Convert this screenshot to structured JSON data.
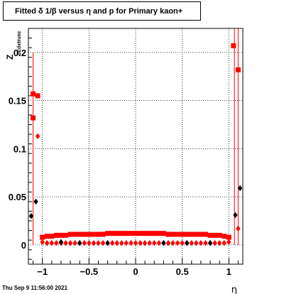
{
  "title": "Fitted δ 1/β versus η and p for Primary kaon+",
  "timestamp": "Thu Sep  9 11:56:00 2021",
  "chart_data": {
    "type": "scatter",
    "title": "Fitted δ 1/β versus η and p for Primary kaon+",
    "xlabel": "η",
    "ylabel_main": "Z",
    "ylabel_sub": "dEdxtrunc",
    "xlim": [
      -1.15,
      1.15
    ],
    "ylim": [
      -0.02,
      0.225
    ],
    "x_ticks": [
      -1,
      -0.5,
      0,
      0.5,
      1
    ],
    "x_tick_labels": [
      "−1",
      "−0.5",
      "0",
      "0.5",
      "1"
    ],
    "y_ticks": [
      0,
      0.05,
      0.1,
      0.15,
      0.2
    ],
    "y_tick_labels": [
      "0",
      "0.05",
      "0.1",
      "0.15",
      "0.2"
    ],
    "grid": true,
    "series": [
      {
        "marker": "square",
        "color": "#ff0000",
        "x": [
          -1.1,
          -1.1,
          -1.05,
          -1.0,
          -0.95,
          -0.9,
          -0.85,
          -0.8,
          -0.75,
          -0.7,
          -0.65,
          -0.6,
          -0.55,
          -0.5,
          -0.45,
          -0.4,
          -0.35,
          -0.3,
          -0.25,
          -0.2,
          -0.15,
          -0.1,
          -0.05,
          0.0,
          0.05,
          0.1,
          0.15,
          0.2,
          0.25,
          0.3,
          0.35,
          0.4,
          0.45,
          0.5,
          0.55,
          0.6,
          0.65,
          0.7,
          0.75,
          0.8,
          0.85,
          0.9,
          0.95,
          1.0,
          1.05,
          1.1
        ],
        "y": [
          0.157,
          0.132,
          0.155,
          0.008,
          0.009,
          0.009,
          0.01,
          0.01,
          0.01,
          0.011,
          0.011,
          0.011,
          0.011,
          0.011,
          0.011,
          0.011,
          0.011,
          0.012,
          0.012,
          0.012,
          0.012,
          0.012,
          0.012,
          0.012,
          0.012,
          0.012,
          0.012,
          0.012,
          0.012,
          0.012,
          0.011,
          0.011,
          0.011,
          0.011,
          0.011,
          0.011,
          0.011,
          0.011,
          0.011,
          0.01,
          0.01,
          0.01,
          0.009,
          0.008,
          0.207,
          0.182
        ]
      },
      {
        "marker": "diamond",
        "color": "#ff0000",
        "x": [
          -1.05,
          -1.0,
          -0.95,
          -0.9,
          -0.85,
          -0.8,
          -0.75,
          -0.7,
          -0.65,
          -0.6,
          -0.55,
          -0.5,
          -0.45,
          -0.4,
          -0.35,
          -0.3,
          -0.25,
          -0.2,
          -0.15,
          -0.1,
          -0.05,
          0.0,
          0.05,
          0.1,
          0.15,
          0.2,
          0.25,
          0.3,
          0.35,
          0.4,
          0.45,
          0.5,
          0.55,
          0.6,
          0.65,
          0.7,
          0.75,
          0.8,
          0.85,
          0.9,
          0.95,
          1.0,
          1.1
        ],
        "y": [
          0.113,
          0.003,
          0.002,
          0.002,
          0.002,
          0.002,
          0.002,
          0.002,
          0.002,
          0.002,
          0.002,
          0.002,
          0.002,
          0.002,
          0.002,
          0.002,
          0.002,
          0.002,
          0.002,
          0.002,
          0.002,
          0.002,
          0.002,
          0.002,
          0.002,
          0.002,
          0.002,
          0.002,
          0.002,
          0.002,
          0.002,
          0.002,
          0.002,
          0.002,
          0.002,
          0.002,
          0.002,
          0.002,
          0.002,
          0.002,
          0.002,
          0.003,
          0.017
        ]
      },
      {
        "marker": "diamond",
        "color": "#000000",
        "x": [
          -1.12,
          -1.07,
          -0.8,
          -0.6,
          -0.3,
          0.3,
          0.55,
          0.8,
          1.07,
          1.12
        ],
        "y": [
          0.03,
          0.045,
          0.003,
          0.002,
          0.002,
          0.002,
          0.002,
          0.002,
          0.031,
          0.059
        ]
      }
    ],
    "vertical_lines": [
      {
        "x": -1.1,
        "y_from": 0.0,
        "y_to": 0.2,
        "color": "#ff0000"
      },
      {
        "x": 1.06,
        "y_from": 0.0,
        "y_to": 0.225,
        "color": "#ff0000"
      },
      {
        "x": 1.1,
        "y_from": 0.0,
        "y_to": 0.225,
        "color": "#ff0000"
      }
    ]
  }
}
